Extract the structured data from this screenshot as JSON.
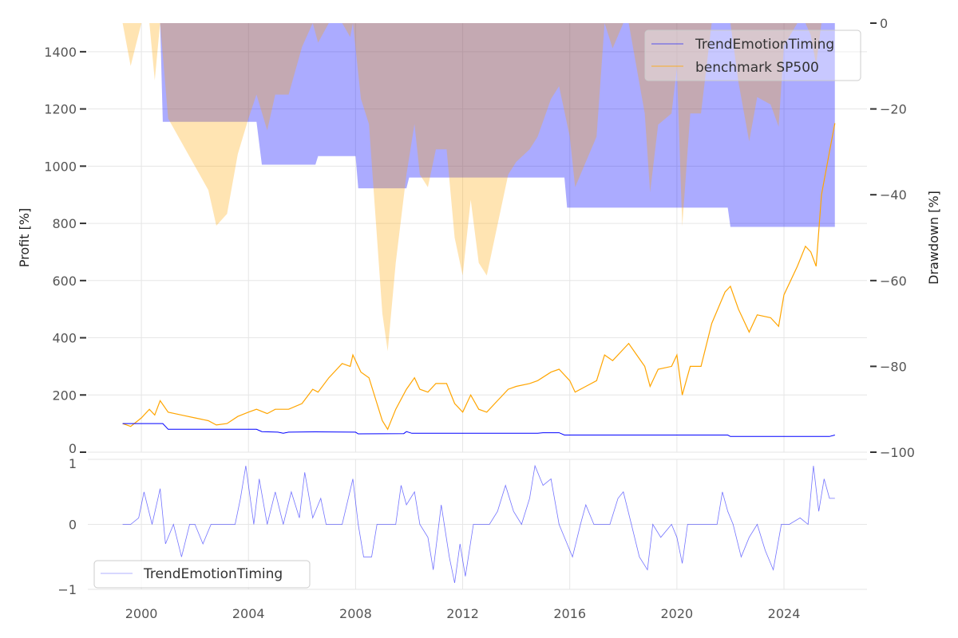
{
  "chart_data": [
    {
      "type": "line",
      "title": "",
      "ylabel": "Profit [%]",
      "ylabel_right": "Drawdown [%]",
      "ylim": [
        0,
        1500
      ],
      "ylim_right": [
        -100,
        0
      ],
      "xlim": [
        1998.0,
        2027.1
      ],
      "yticks": [
        0,
        200,
        400,
        600,
        800,
        1000,
        1200,
        1400
      ],
      "yticks_right": [
        0,
        -20,
        -40,
        -60,
        -80,
        -100
      ],
      "grid": true,
      "legend_position": "top-right",
      "colors": {
        "strategy": "#0000ff",
        "benchmark": "#ffa500",
        "strategy_dd": "#0000ff",
        "benchmark_dd": "#ffa500"
      },
      "series": [
        {
          "name": "TrendEmotionTiming",
          "points": [
            [
              1999.3,
              100
            ],
            [
              2000.8,
              100
            ],
            [
              2000.9,
              90
            ],
            [
              2001.0,
              80
            ],
            [
              2004.3,
              80
            ],
            [
              2004.5,
              72
            ],
            [
              2005.1,
              70
            ],
            [
              2005.3,
              66
            ],
            [
              2005.5,
              70
            ],
            [
              2006.5,
              71
            ],
            [
              2008.0,
              70
            ],
            [
              2008.1,
              64
            ],
            [
              2009.8,
              65
            ],
            [
              2009.9,
              72
            ],
            [
              2010.1,
              66
            ],
            [
              2014.8,
              66
            ],
            [
              2015.0,
              68
            ],
            [
              2015.6,
              68
            ],
            [
              2015.8,
              60
            ],
            [
              2021.9,
              60
            ],
            [
              2022.0,
              55
            ],
            [
              2025.7,
              55
            ],
            [
              2025.9,
              60
            ]
          ]
        },
        {
          "name": "benchmark SP500",
          "points": [
            [
              1999.3,
              100
            ],
            [
              1999.6,
              90
            ],
            [
              2000.0,
              120
            ],
            [
              2000.3,
              150
            ],
            [
              2000.5,
              130
            ],
            [
              2000.7,
              180
            ],
            [
              2001.0,
              140
            ],
            [
              2001.5,
              130
            ],
            [
              2002.0,
              120
            ],
            [
              2002.5,
              110
            ],
            [
              2002.8,
              95
            ],
            [
              2003.2,
              100
            ],
            [
              2003.6,
              125
            ],
            [
              2004.0,
              140
            ],
            [
              2004.3,
              150
            ],
            [
              2004.7,
              135
            ],
            [
              2005.0,
              150
            ],
            [
              2005.5,
              150
            ],
            [
              2006.0,
              170
            ],
            [
              2006.4,
              220
            ],
            [
              2006.6,
              210
            ],
            [
              2007.0,
              260
            ],
            [
              2007.5,
              310
            ],
            [
              2007.8,
              300
            ],
            [
              2007.9,
              340
            ],
            [
              2008.2,
              280
            ],
            [
              2008.5,
              260
            ],
            [
              2008.8,
              170
            ],
            [
              2009.0,
              110
            ],
            [
              2009.2,
              80
            ],
            [
              2009.5,
              150
            ],
            [
              2009.9,
              220
            ],
            [
              2010.2,
              260
            ],
            [
              2010.4,
              220
            ],
            [
              2010.7,
              210
            ],
            [
              2011.0,
              240
            ],
            [
              2011.4,
              240
            ],
            [
              2011.7,
              170
            ],
            [
              2012.0,
              140
            ],
            [
              2012.3,
              200
            ],
            [
              2012.6,
              150
            ],
            [
              2012.9,
              140
            ],
            [
              2013.3,
              180
            ],
            [
              2013.7,
              220
            ],
            [
              2014.0,
              230
            ],
            [
              2014.5,
              240
            ],
            [
              2014.8,
              250
            ],
            [
              2015.3,
              280
            ],
            [
              2015.6,
              290
            ],
            [
              2016.0,
              250
            ],
            [
              2016.2,
              210
            ],
            [
              2016.6,
              230
            ],
            [
              2017.0,
              250
            ],
            [
              2017.3,
              340
            ],
            [
              2017.6,
              320
            ],
            [
              2018.0,
              360
            ],
            [
              2018.2,
              380
            ],
            [
              2018.5,
              340
            ],
            [
              2018.8,
              300
            ],
            [
              2019.0,
              230
            ],
            [
              2019.3,
              290
            ],
            [
              2019.8,
              300
            ],
            [
              2020.0,
              340
            ],
            [
              2020.2,
              200
            ],
            [
              2020.5,
              300
            ],
            [
              2020.9,
              300
            ],
            [
              2021.3,
              450
            ],
            [
              2021.8,
              560
            ],
            [
              2022.0,
              580
            ],
            [
              2022.3,
              500
            ],
            [
              2022.7,
              420
            ],
            [
              2023.0,
              480
            ],
            [
              2023.5,
              470
            ],
            [
              2023.8,
              440
            ],
            [
              2024.0,
              550
            ],
            [
              2024.5,
              650
            ],
            [
              2024.8,
              720
            ],
            [
              2025.0,
              700
            ],
            [
              2025.2,
              650
            ],
            [
              2025.4,
              900
            ],
            [
              2025.7,
              1050
            ],
            [
              2025.9,
              1150
            ]
          ]
        }
      ],
      "drawdown_series": [
        {
          "name": "TrendEmotionTiming drawdown",
          "points": [
            [
              1999.3,
              0
            ],
            [
              2000.7,
              0
            ],
            [
              2000.8,
              -23
            ],
            [
              2004.3,
              -23
            ],
            [
              2004.5,
              -33
            ],
            [
              2006.5,
              -33
            ],
            [
              2006.6,
              -31
            ],
            [
              2008.0,
              -31
            ],
            [
              2008.1,
              -38.5
            ],
            [
              2009.9,
              -38.5
            ],
            [
              2010.0,
              -36
            ],
            [
              2015.8,
              -36
            ],
            [
              2015.9,
              -43
            ],
            [
              2021.9,
              -43
            ],
            [
              2022.0,
              -47.5
            ],
            [
              2025.9,
              -47.5
            ]
          ]
        }
      ]
    },
    {
      "type": "line",
      "ylim": [
        -1,
        1
      ],
      "yticks": [
        1,
        0,
        -1
      ],
      "xticks": [
        2000,
        2004,
        2008,
        2012,
        2016,
        2020,
        2024
      ],
      "legend_position": "bottom-left",
      "series": [
        {
          "name": "TrendEmotionTiming",
          "points": [
            [
              1999.3,
              0
            ],
            [
              1999.6,
              0
            ],
            [
              1999.9,
              0.1
            ],
            [
              2000.1,
              0.5
            ],
            [
              2000.4,
              0
            ],
            [
              2000.7,
              0.55
            ],
            [
              2000.9,
              -0.3
            ],
            [
              2001.2,
              0
            ],
            [
              2001.5,
              -0.5
            ],
            [
              2001.8,
              0
            ],
            [
              2002.0,
              0
            ],
            [
              2002.3,
              -0.3
            ],
            [
              2002.6,
              0
            ],
            [
              2003.5,
              0
            ],
            [
              2003.7,
              0.4
            ],
            [
              2003.9,
              0.9
            ],
            [
              2004.2,
              0
            ],
            [
              2004.4,
              0.7
            ],
            [
              2004.7,
              0
            ],
            [
              2005.0,
              0.5
            ],
            [
              2005.3,
              0
            ],
            [
              2005.6,
              0.5
            ],
            [
              2005.9,
              0.1
            ],
            [
              2006.1,
              0.8
            ],
            [
              2006.4,
              0.1
            ],
            [
              2006.7,
              0.4
            ],
            [
              2006.9,
              0
            ],
            [
              2007.5,
              0
            ],
            [
              2007.9,
              0.7
            ],
            [
              2008.1,
              0
            ],
            [
              2008.3,
              -0.5
            ],
            [
              2008.6,
              -0.5
            ],
            [
              2008.8,
              0
            ],
            [
              2009.5,
              0
            ],
            [
              2009.7,
              0.6
            ],
            [
              2009.9,
              0.3
            ],
            [
              2010.2,
              0.5
            ],
            [
              2010.4,
              0
            ],
            [
              2010.7,
              -0.2
            ],
            [
              2010.9,
              -0.7
            ],
            [
              2011.2,
              0.3
            ],
            [
              2011.5,
              -0.5
            ],
            [
              2011.7,
              -0.9
            ],
            [
              2011.9,
              -0.3
            ],
            [
              2012.1,
              -0.8
            ],
            [
              2012.4,
              0
            ],
            [
              2013.0,
              0
            ],
            [
              2013.3,
              0.2
            ],
            [
              2013.6,
              0.6
            ],
            [
              2013.9,
              0.2
            ],
            [
              2014.2,
              0
            ],
            [
              2014.5,
              0.4
            ],
            [
              2014.7,
              0.9
            ],
            [
              2015.0,
              0.6
            ],
            [
              2015.3,
              0.7
            ],
            [
              2015.6,
              0
            ],
            [
              2015.9,
              -0.3
            ],
            [
              2016.1,
              -0.5
            ],
            [
              2016.4,
              0
            ],
            [
              2016.6,
              0.3
            ],
            [
              2016.9,
              0
            ],
            [
              2017.5,
              0
            ],
            [
              2017.8,
              0.4
            ],
            [
              2018.0,
              0.5
            ],
            [
              2018.3,
              0
            ],
            [
              2018.6,
              -0.5
            ],
            [
              2018.9,
              -0.7
            ],
            [
              2019.1,
              0
            ],
            [
              2019.4,
              -0.2
            ],
            [
              2019.8,
              0
            ],
            [
              2020.0,
              -0.2
            ],
            [
              2020.2,
              -0.6
            ],
            [
              2020.4,
              0
            ],
            [
              2021.5,
              0
            ],
            [
              2021.7,
              0.5
            ],
            [
              2021.9,
              0.2
            ],
            [
              2022.1,
              0
            ],
            [
              2022.4,
              -0.5
            ],
            [
              2022.7,
              -0.2
            ],
            [
              2023.0,
              0
            ],
            [
              2023.3,
              -0.4
            ],
            [
              2023.6,
              -0.7
            ],
            [
              2023.9,
              0
            ],
            [
              2024.2,
              0
            ],
            [
              2024.6,
              0.1
            ],
            [
              2024.9,
              0
            ],
            [
              2025.1,
              0.9
            ],
            [
              2025.3,
              0.2
            ],
            [
              2025.5,
              0.7
            ],
            [
              2025.7,
              0.4
            ],
            [
              2025.9,
              0.4
            ]
          ]
        }
      ]
    }
  ],
  "legend_main": [
    "TrendEmotionTiming",
    "benchmark SP500"
  ],
  "legend_bottom": "TrendEmotionTiming"
}
